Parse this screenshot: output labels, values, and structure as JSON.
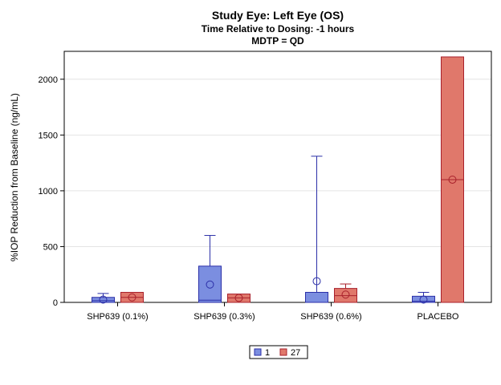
{
  "chart_data": {
    "type": "box",
    "title": "Study Eye: Left Eye (OS)",
    "subtitle_lines": [
      "Time Relative to Dosing: -1 hours",
      "MDTP = QD"
    ],
    "xlabel": "",
    "ylabel": "%IOP Reduction from Baseline (ng/mL)",
    "ylim": [
      0,
      2250
    ],
    "yticks": [
      0,
      500,
      1000,
      1500,
      2000
    ],
    "grid": true,
    "legend_position": "bottom-center",
    "categories": [
      "SHP639  (0.1%)",
      "SHP639  (0.3%)",
      "SHP639  (0.6%)",
      "PLACEBO"
    ],
    "series": [
      {
        "name": "1",
        "color": "#7B8EE0",
        "edge_color": "#2B2FA8",
        "boxes": [
          {
            "min": 0,
            "q1": 0,
            "median": 15,
            "q3": 45,
            "max": 80,
            "mean": 25
          },
          {
            "min": 0,
            "q1": 0,
            "median": 20,
            "q3": 325,
            "max": 600,
            "mean": 160
          },
          {
            "min": 0,
            "q1": 0,
            "median": 0,
            "q3": 90,
            "max": 1310,
            "mean": 190
          },
          {
            "min": 0,
            "q1": 0,
            "median": 10,
            "q3": 55,
            "max": 90,
            "mean": 25
          }
        ]
      },
      {
        "name": "27",
        "color": "#E0786B",
        "edge_color": "#A8202B",
        "boxes": [
          {
            "min": 0,
            "q1": 0,
            "median": 45,
            "q3": 90,
            "max": 90,
            "mean": 45
          },
          {
            "min": 0,
            "q1": 0,
            "median": 40,
            "q3": 75,
            "max": 75,
            "mean": 40
          },
          {
            "min": 0,
            "q1": 0,
            "median": 60,
            "q3": 125,
            "max": 165,
            "mean": 70
          },
          {
            "min": 0,
            "q1": 0,
            "median": 1100,
            "q3": 2200,
            "max": 2200,
            "mean": 1100
          }
        ]
      }
    ]
  }
}
